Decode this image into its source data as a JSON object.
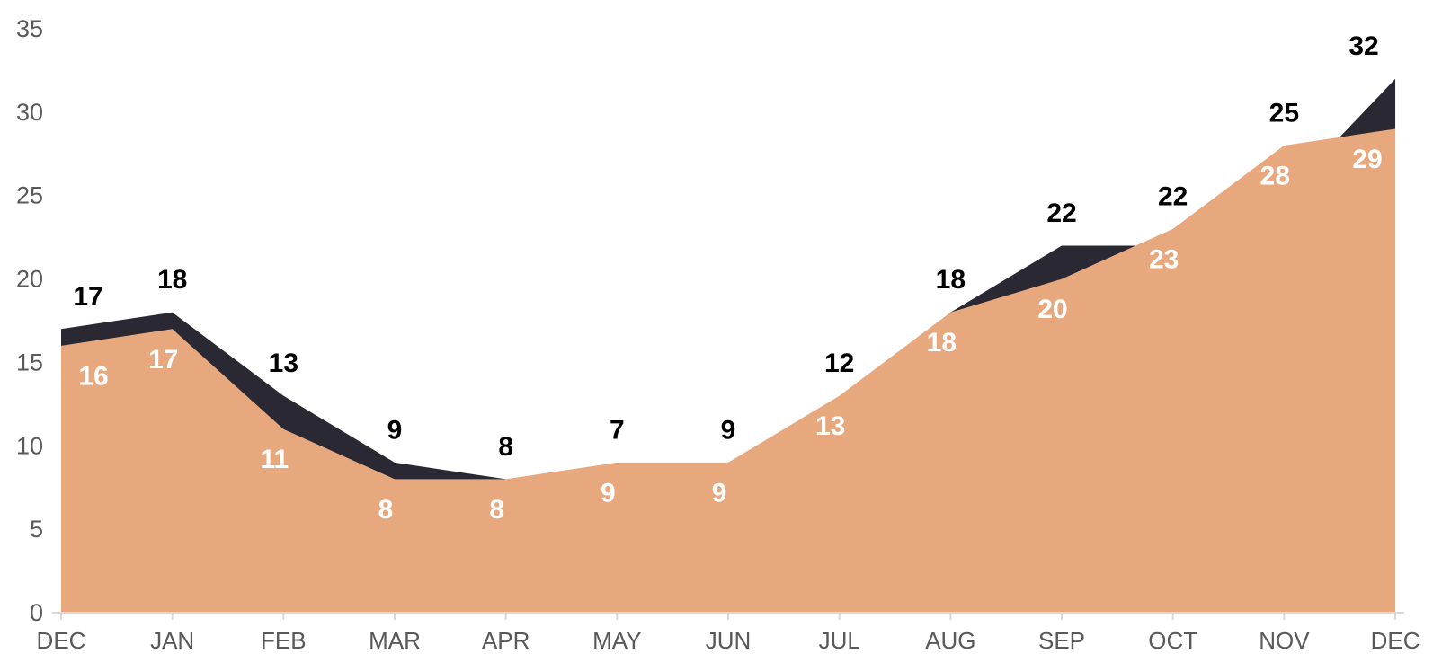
{
  "chart_data": {
    "type": "area",
    "title": "",
    "categories": [
      "DEC",
      "JAN",
      "FEB",
      "MAR",
      "APR",
      "MAY",
      "JUN",
      "JUL",
      "AUG",
      "SEP",
      "OCT",
      "NOV",
      "DEC"
    ],
    "series": [
      {
        "name": "dark-series",
        "color": "#2A2933",
        "label_color": "#000000",
        "label_position": "above-line",
        "values": [
          17,
          18,
          13,
          9,
          8,
          7,
          9,
          12,
          18,
          22,
          22,
          25,
          32
        ]
      },
      {
        "name": "salmon-series",
        "color": "#E8A87E",
        "label_color": "#FFFFFF",
        "label_position": "inside-below-line",
        "values": [
          16,
          17,
          11,
          8,
          8,
          9,
          9,
          13,
          18,
          20,
          23,
          28,
          29
        ]
      }
    ],
    "y_axis": {
      "ticks": [
        0,
        5,
        10,
        15,
        20,
        25,
        30,
        35
      ],
      "range": [
        0,
        35
      ],
      "label_color": "#595959"
    },
    "x_axis": {
      "label_color": "#595959",
      "axis_line_color": "#D9D9D9",
      "tick_marks": true
    },
    "grid": false,
    "legend": "none",
    "background": "#FFFFFF"
  }
}
